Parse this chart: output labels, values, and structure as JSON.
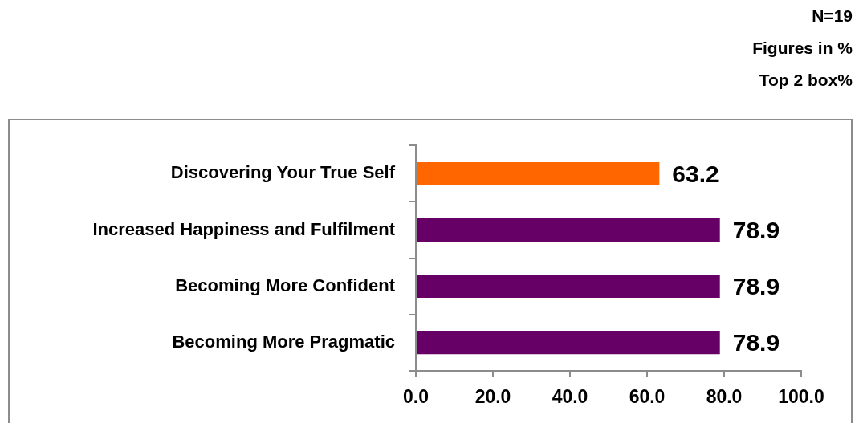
{
  "chart_data": {
    "type": "bar",
    "orientation": "horizontal",
    "annotations": [
      "N=19",
      "Figures in %",
      "Top 2 box%"
    ],
    "categories": [
      "Discovering Your True Self",
      "Increased Happiness and Fulfilment",
      "Becoming More Confident",
      "Becoming More Pragmatic"
    ],
    "values": [
      63.2,
      78.9,
      78.9,
      78.9
    ],
    "colors": [
      "#ff6600",
      "#660066",
      "#660066",
      "#660066"
    ],
    "xlim": [
      0,
      100
    ],
    "xticks": [
      {
        "value": 0,
        "label": "0.0"
      },
      {
        "value": 20,
        "label": "20.0"
      },
      {
        "value": 40,
        "label": "40.0"
      },
      {
        "value": 60,
        "label": "60.0"
      },
      {
        "value": 80,
        "label": "80.0"
      },
      {
        "value": 100,
        "label": "100.0"
      }
    ],
    "data_labels": true
  }
}
